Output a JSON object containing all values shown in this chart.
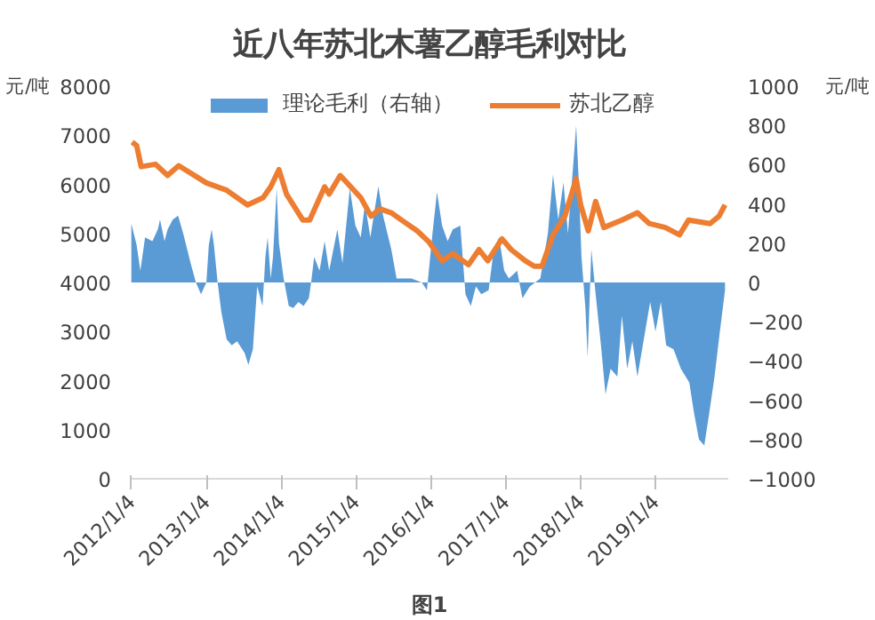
{
  "chart_data": {
    "type": "area",
    "title": "近八年苏北木薯乙醇毛利对比",
    "ylabel": "元/吨",
    "y2label": "元/吨",
    "annotations": [
      "图1"
    ],
    "xlim": [
      "2012-01-01",
      "2019-12-25"
    ],
    "xticks": [
      {
        "value": "2012-01-04",
        "label": "2012/1/4"
      },
      {
        "value": "2013-01-04",
        "label": "2013/1/4"
      },
      {
        "value": "2014-01-04",
        "label": "2014/1/4"
      },
      {
        "value": "2015-01-04",
        "label": "2015/1/4"
      },
      {
        "value": "2016-01-04",
        "label": "2016/1/4"
      },
      {
        "value": "2017-01-04",
        "label": "2017/1/4"
      },
      {
        "value": "2018-01-04",
        "label": "2018/1/4"
      },
      {
        "value": "2019-01-04",
        "label": "2019/1/4"
      }
    ],
    "ylim": [
      0,
      8000
    ],
    "yticks": [
      0,
      1000,
      2000,
      3000,
      4000,
      5000,
      6000,
      7000,
      8000
    ],
    "y2lim": [
      -1000,
      1000
    ],
    "y2ticks": [
      -1000,
      -800,
      -600,
      -400,
      -200,
      0,
      200,
      400,
      600,
      800,
      1000
    ],
    "legend": "top",
    "series": [
      {
        "name": "理论毛利（右轴）",
        "axis": "y2",
        "color": "#5b9bd5",
        "x": [
          "2012-01-04",
          "2012-01-30",
          "2012-02-17",
          "2012-03-11",
          "2012-04-16",
          "2012-05-12",
          "2012-05-23",
          "2012-06-14",
          "2012-06-29",
          "2012-07-24",
          "2012-08-19",
          "2012-09-13",
          "2012-10-19",
          "2012-11-14",
          "2012-12-09",
          "2013-01-04",
          "2013-01-16",
          "2013-01-30",
          "2013-02-10",
          "2013-02-28",
          "2013-03-18",
          "2013-04-13",
          "2013-05-08",
          "2013-06-03",
          "2013-07-10",
          "2013-07-28",
          "2013-08-19",
          "2013-08-30",
          "2013-09-09",
          "2013-10-05",
          "2013-10-19",
          "2013-10-30",
          "2013-11-14",
          "2013-11-25",
          "2013-12-13",
          "2013-12-24",
          "2014-01-16",
          "2014-02-10",
          "2014-03-04",
          "2014-03-29",
          "2014-04-23",
          "2014-05-19",
          "2014-05-30",
          "2014-06-14",
          "2014-07-10",
          "2014-08-04",
          "2014-08-26",
          "2014-10-05",
          "2014-10-30",
          "2014-12-05",
          "2015-01-01",
          "2015-01-27",
          "2015-02-17",
          "2015-03-15",
          "2015-04-23",
          "2015-05-16",
          "2015-06-25",
          "2015-07-21",
          "2015-08-11",
          "2015-10-01",
          "2015-11-21",
          "2015-12-16",
          "2016-01-12",
          "2016-02-03",
          "2016-02-28",
          "2016-03-26",
          "2016-04-20",
          "2016-05-27",
          "2016-06-21",
          "2016-07-17",
          "2016-08-11",
          "2016-09-06",
          "2016-10-12",
          "2016-11-06",
          "2016-12-02",
          "2016-12-27",
          "2017-01-19",
          "2017-02-28",
          "2017-03-26",
          "2017-05-01",
          "2017-06-21",
          "2017-07-28",
          "2017-08-22",
          "2017-09-17",
          "2017-10-12",
          "2017-11-03",
          "2017-11-28",
          "2017-12-13",
          "2017-12-24",
          "2018-01-08",
          "2018-01-27",
          "2018-02-07",
          "2018-02-25",
          "2018-03-18",
          "2018-04-13",
          "2018-05-05",
          "2018-05-30",
          "2018-07-02",
          "2018-07-24",
          "2018-08-19",
          "2018-09-13",
          "2018-10-08",
          "2018-11-03",
          "2018-12-09",
          "2019-01-04",
          "2019-01-30",
          "2019-02-25",
          "2019-04-02",
          "2019-05-08",
          "2019-06-18",
          "2019-07-10",
          "2019-08-04",
          "2019-08-30",
          "2019-09-24",
          "2019-10-19",
          "2019-11-14",
          "2019-12-09"
        ],
        "values": [
          300,
          190,
          60,
          230,
          210,
          270,
          320,
          210,
          270,
          320,
          340,
          250,
          100,
          0,
          -60,
          0,
          190,
          270,
          190,
          0,
          -150,
          -290,
          -320,
          -300,
          -360,
          -420,
          -340,
          -170,
          -20,
          -120,
          130,
          230,
          20,
          130,
          480,
          200,
          20,
          -120,
          -130,
          -100,
          -120,
          -80,
          0,
          130,
          60,
          210,
          60,
          270,
          100,
          480,
          290,
          230,
          400,
          230,
          490,
          340,
          170,
          20,
          20,
          20,
          0,
          -40,
          250,
          460,
          290,
          210,
          270,
          290,
          -60,
          -120,
          -20,
          -60,
          -40,
          170,
          230,
          60,
          20,
          60,
          -80,
          -20,
          20,
          250,
          550,
          320,
          510,
          250,
          590,
          800,
          550,
          130,
          -130,
          -380,
          170,
          -60,
          -320,
          -570,
          -440,
          -480,
          -170,
          -440,
          -300,
          -480,
          -320,
          -100,
          -250,
          -100,
          -320,
          -340,
          -440,
          -510,
          -660,
          -800,
          -830,
          -660,
          -480,
          -250,
          -40
        ]
      },
      {
        "name": "苏北乙醇",
        "type": "line",
        "color": "#ed7d31",
        "x": [
          "2012-01-08",
          "2012-01-30",
          "2012-02-21",
          "2012-05-01",
          "2012-06-29",
          "2012-08-22",
          "2013-01-04",
          "2013-04-13",
          "2013-07-24",
          "2013-10-08",
          "2013-11-14",
          "2013-12-24",
          "2014-01-30",
          "2014-04-20",
          "2014-05-23",
          "2014-08-04",
          "2014-08-26",
          "2014-10-19",
          "2015-01-27",
          "2015-03-18",
          "2015-05-01",
          "2015-06-25",
          "2015-08-15",
          "2015-10-30",
          "2015-12-27",
          "2016-02-28",
          "2016-04-20",
          "2016-07-06",
          "2016-08-26",
          "2016-10-08",
          "2016-12-16",
          "2017-01-30",
          "2017-04-09",
          "2017-05-23",
          "2017-06-29",
          "2017-08-22",
          "2017-10-19",
          "2017-12-13",
          "2018-01-04",
          "2018-02-10",
          "2018-03-18",
          "2018-04-27",
          "2018-07-24",
          "2018-10-08",
          "2018-12-05",
          "2019-02-21",
          "2019-05-01",
          "2019-06-14",
          "2019-09-27",
          "2019-11-10",
          "2019-12-09"
        ],
        "values": [
          6860,
          6790,
          6360,
          6410,
          6180,
          6380,
          6030,
          5880,
          5580,
          5730,
          5950,
          6300,
          5800,
          5270,
          5270,
          5950,
          5800,
          6180,
          5730,
          5350,
          5500,
          5420,
          5270,
          5050,
          4820,
          4440,
          4590,
          4360,
          4670,
          4440,
          4890,
          4670,
          4440,
          4330,
          4330,
          4970,
          5350,
          6110,
          5580,
          5050,
          5650,
          5120,
          5270,
          5420,
          5200,
          5120,
          4970,
          5270,
          5200,
          5350,
          5580
        ]
      }
    ]
  }
}
